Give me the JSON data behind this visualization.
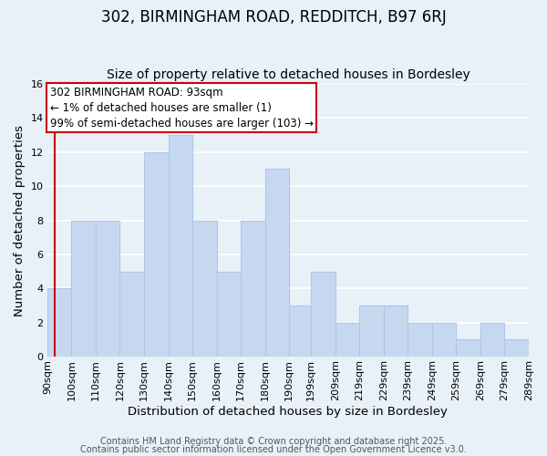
{
  "title": "302, BIRMINGHAM ROAD, REDDITCH, B97 6RJ",
  "subtitle": "Size of property relative to detached houses in Bordesley",
  "xlabel": "Distribution of detached houses by size in Bordesley",
  "ylabel": "Number of detached properties",
  "bar_heights": [
    4,
    8,
    8,
    5,
    12,
    13,
    8,
    5,
    8,
    11,
    3,
    5,
    2,
    3,
    3,
    2,
    2,
    1,
    2,
    1
  ],
  "bin_edges": [
    90,
    100,
    110,
    120,
    130,
    140,
    150,
    160,
    170,
    180,
    190,
    199,
    209,
    219,
    229,
    239,
    249,
    259,
    269,
    279,
    289
  ],
  "x_tick_labels": [
    "90sqm",
    "100sqm",
    "110sqm",
    "120sqm",
    "130sqm",
    "140sqm",
    "150sqm",
    "160sqm",
    "170sqm",
    "180sqm",
    "190sqm",
    "199sqm",
    "209sqm",
    "219sqm",
    "229sqm",
    "239sqm",
    "249sqm",
    "259sqm",
    "269sqm",
    "279sqm",
    "289sqm"
  ],
  "bar_color": "#c5d8f0",
  "bar_edgecolor": "#aec6e8",
  "bar_linewidth": 0.8,
  "ylim": [
    0,
    16
  ],
  "yticks": [
    0,
    2,
    4,
    6,
    8,
    10,
    12,
    14,
    16
  ],
  "grid_color": "#ffffff",
  "bg_color": "#e8f0f8",
  "red_line_x": 93,
  "annotation_text": "302 BIRMINGHAM ROAD: 93sqm\n← 1% of detached houses are smaller (1)\n99% of semi-detached houses are larger (103) →",
  "annotation_box_color": "#ffffff",
  "annotation_box_edgecolor": "#cc0000",
  "footer1": "Contains HM Land Registry data © Crown copyright and database right 2025.",
  "footer2": "Contains public sector information licensed under the Open Government Licence v3.0.",
  "title_fontsize": 12,
  "subtitle_fontsize": 10,
  "axis_label_fontsize": 9.5,
  "tick_fontsize": 8,
  "annotation_fontsize": 8.5,
  "footer_fontsize": 7
}
